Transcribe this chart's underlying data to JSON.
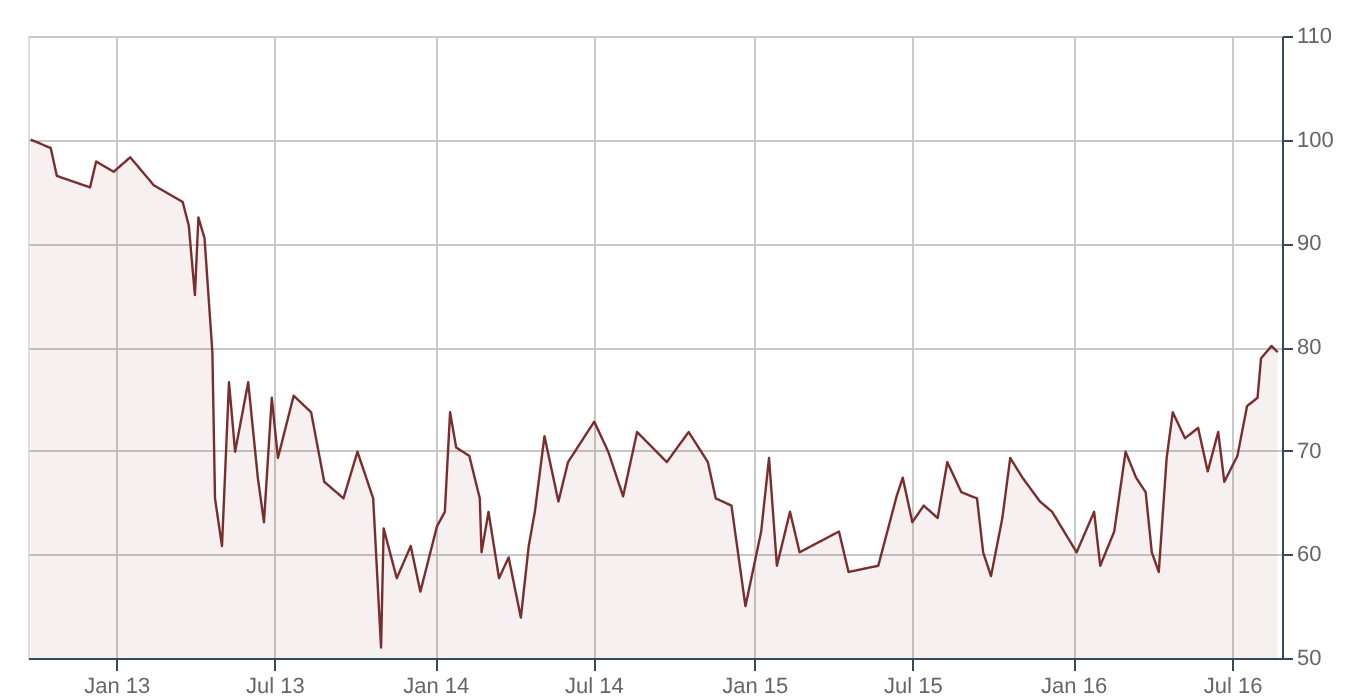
{
  "chart_data": {
    "type": "area",
    "xlim": [
      "2012-09-22",
      "2016-08-27"
    ],
    "ylim": [
      50,
      110
    ],
    "yticks": [
      50,
      60,
      70,
      80,
      90,
      100,
      110
    ],
    "xticks": [
      {
        "value": "2013-01-01",
        "label": "Jan 13"
      },
      {
        "value": "2013-07-01",
        "label": "Jul 13"
      },
      {
        "value": "2014-01-01",
        "label": "Jan 14"
      },
      {
        "value": "2014-07-01",
        "label": "Jul 14"
      },
      {
        "value": "2015-01-01",
        "label": "Jan 15"
      },
      {
        "value": "2015-07-01",
        "label": "Jul 15"
      },
      {
        "value": "2016-01-01",
        "label": "Jan 16"
      },
      {
        "value": "2016-07-01",
        "label": "Jul 16"
      }
    ],
    "grid": true,
    "x": [
      "2012-09-25",
      "2012-10-18",
      "2012-10-25",
      "2012-12-02",
      "2012-12-09",
      "2012-12-29",
      "2013-01-17",
      "2013-02-13",
      "2013-03-18",
      "2013-03-25",
      "2013-04-01",
      "2013-04-05",
      "2013-04-12",
      "2013-04-21",
      "2013-04-24",
      "2013-05-02",
      "2013-05-10",
      "2013-05-17",
      "2013-06-01",
      "2013-06-12",
      "2013-06-19",
      "2013-06-28",
      "2013-07-05",
      "2013-07-23",
      "2013-08-12",
      "2013-08-27",
      "2013-09-18",
      "2013-10-04",
      "2013-10-22",
      "2013-10-31",
      "2013-11-03",
      "2013-11-18",
      "2013-12-04",
      "2013-12-15",
      "2014-01-03",
      "2014-01-12",
      "2014-01-18",
      "2014-01-25",
      "2014-02-09",
      "2014-02-21",
      "2014-02-23",
      "2014-03-03",
      "2014-03-15",
      "2014-03-26",
      "2014-04-09",
      "2014-04-18",
      "2014-04-25",
      "2014-05-06",
      "2014-05-22",
      "2014-06-02",
      "2014-07-02",
      "2014-07-18",
      "2014-08-04",
      "2014-08-20",
      "2014-09-23",
      "2014-10-18",
      "2014-11-09",
      "2014-11-18",
      "2014-12-06",
      "2014-12-22",
      "2015-01-09",
      "2015-01-18",
      "2015-01-27",
      "2015-02-11",
      "2015-02-22",
      "2015-04-08",
      "2015-04-19",
      "2015-05-23",
      "2015-06-13",
      "2015-06-20",
      "2015-07-01",
      "2015-07-14",
      "2015-07-30",
      "2015-08-10",
      "2015-08-26",
      "2015-09-13",
      "2015-09-20",
      "2015-09-29",
      "2015-10-12",
      "2015-10-21",
      "2015-11-04",
      "2015-11-24",
      "2015-12-08",
      "2016-01-05",
      "2016-01-25",
      "2016-02-01",
      "2016-02-17",
      "2016-03-01",
      "2016-03-13",
      "2016-03-24",
      "2016-03-31",
      "2016-04-08",
      "2016-04-17",
      "2016-04-24",
      "2016-05-08",
      "2016-05-23",
      "2016-06-03",
      "2016-06-15",
      "2016-06-22",
      "2016-07-07",
      "2016-07-18",
      "2016-07-30",
      "2016-08-03",
      "2016-08-15",
      "2016-08-22"
    ],
    "series": [
      {
        "color": "#7b2d2d",
        "values": [
          100,
          99.2,
          96.5,
          95.4,
          97.9,
          96.9,
          98.3,
          95.6,
          94,
          91.7,
          85,
          92.5,
          90.5,
          79.5,
          65.4,
          60.8,
          76.6,
          69.9,
          76.6,
          67.4,
          63.1,
          75.1,
          69.3,
          75.3,
          73.7,
          67,
          65.4,
          69.9,
          65.4,
          51,
          62.5,
          57.7,
          60.8,
          56.4,
          62.7,
          64.1,
          73.7,
          70.3,
          69.5,
          65.4,
          60.2,
          64.1,
          57.7,
          59.7,
          53.9,
          60.8,
          64.1,
          71.4,
          65.1,
          68.9,
          72.8,
          69.9,
          65.6,
          71.8,
          68.9,
          71.8,
          68.9,
          65.4,
          64.7,
          55,
          62.2,
          69.3,
          58.9,
          64.1,
          60.2,
          62.2,
          58.3,
          58.9,
          65.6,
          67.4,
          63.1,
          64.7,
          63.5,
          68.9,
          66,
          65.4,
          60.2,
          57.9,
          63.5,
          69.3,
          67.4,
          65.1,
          64.1,
          60.2,
          64.1,
          58.9,
          62.2,
          69.9,
          67.4,
          66,
          60.2,
          58.3,
          69.3,
          73.7,
          71.2,
          72.2,
          68,
          71.8,
          67,
          69.5,
          74.3,
          75.1,
          78.9,
          80.1,
          79.5
        ]
      }
    ]
  }
}
